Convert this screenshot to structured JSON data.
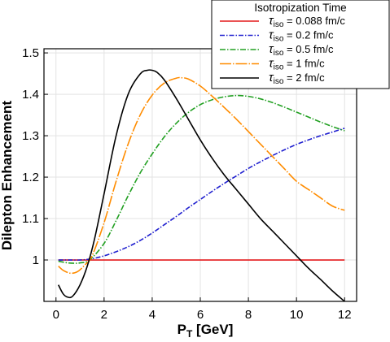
{
  "chart_data": {
    "type": "line",
    "xlabel": {
      "main": "P",
      "sub": "T",
      "unit": " [GeV]"
    },
    "ylabel": "Dilepton Enhancement",
    "xlim": [
      -0.5,
      12.5
    ],
    "ylim": [
      0.9,
      1.51
    ],
    "xticks": [
      0,
      2,
      4,
      6,
      8,
      10,
      12
    ],
    "yticks": [
      1,
      1.1,
      1.2,
      1.3,
      1.4,
      1.5
    ],
    "xtick_labels": [
      "0",
      "2",
      "4",
      "6",
      "8",
      "10",
      "12"
    ],
    "ytick_labels": [
      "1",
      "1.1",
      "1.2",
      "1.3",
      "1.4",
      "1.5"
    ],
    "grid": true,
    "legend": {
      "title": "Isotropization Time",
      "placement": "top-right",
      "entries": [
        {
          "sym": "τ",
          "sub": "iso",
          "text": " = 0.088 fm/c"
        },
        {
          "sym": "τ",
          "sub": "iso",
          "text": " = 0.2 fm/c"
        },
        {
          "sym": "τ",
          "sub": "iso",
          "text": " = 0.5 fm/c"
        },
        {
          "sym": "τ",
          "sub": "iso",
          "text": " = 1 fm/c"
        },
        {
          "sym": "τ",
          "sub": "iso",
          "text": " = 2 fm/c"
        }
      ]
    },
    "series": [
      {
        "color": "#e41a1c",
        "dash": "",
        "x": [
          0.1,
          12
        ],
        "y": [
          1.0,
          1.0
        ]
      },
      {
        "color": "#1f1fcf",
        "dash": "6,2,1.5,2",
        "x": [
          0.1,
          0.5,
          1,
          1.5,
          2,
          2.5,
          3,
          3.5,
          4,
          4.5,
          5,
          5.5,
          6,
          6.5,
          7,
          7.5,
          8,
          8.5,
          9,
          9.5,
          10,
          10.5,
          11,
          11.5,
          12
        ],
        "y": [
          1.0,
          1.0,
          1.0,
          1.003,
          1.01,
          1.02,
          1.032,
          1.047,
          1.065,
          1.085,
          1.105,
          1.126,
          1.146,
          1.166,
          1.185,
          1.203,
          1.221,
          1.237,
          1.252,
          1.266,
          1.279,
          1.29,
          1.3,
          1.309,
          1.318
        ]
      },
      {
        "color": "#22a022",
        "dash": "7,2,1.5,2",
        "x": [
          0.1,
          0.5,
          0.8,
          1,
          1.4,
          2,
          2.5,
          3,
          3.5,
          4,
          4.5,
          5,
          5.5,
          6,
          6.5,
          7,
          7.5,
          8,
          8.5,
          9,
          9.5,
          10,
          10.5,
          11,
          11.5,
          12
        ],
        "y": [
          0.997,
          0.993,
          0.992,
          0.993,
          1.0,
          1.04,
          1.095,
          1.155,
          1.21,
          1.256,
          1.297,
          1.33,
          1.356,
          1.375,
          1.387,
          1.394,
          1.397,
          1.395,
          1.389,
          1.38,
          1.369,
          1.357,
          1.345,
          1.333,
          1.322,
          1.312
        ]
      },
      {
        "color": "#ff8c00",
        "dash": "14,2,1.5,2",
        "x": [
          0.1,
          0.3,
          0.6,
          0.9,
          1.2,
          1.5,
          2,
          2.5,
          3,
          3.5,
          4,
          4.5,
          5,
          5.2,
          5.5,
          6,
          6.5,
          7,
          7.5,
          8,
          8.5,
          9,
          9.5,
          10,
          10.5,
          11,
          11.5,
          12
        ],
        "y": [
          0.985,
          0.975,
          0.968,
          0.972,
          0.988,
          1.01,
          1.09,
          1.19,
          1.28,
          1.35,
          1.398,
          1.427,
          1.439,
          1.44,
          1.437,
          1.42,
          1.395,
          1.368,
          1.34,
          1.31,
          1.28,
          1.25,
          1.22,
          1.19,
          1.17,
          1.15,
          1.13,
          1.12
        ]
      },
      {
        "color": "#000000",
        "dash": "",
        "x": [
          0.1,
          0.3,
          0.5,
          0.7,
          1,
          1.3,
          1.6,
          2,
          2.5,
          3,
          3.5,
          3.8,
          4,
          4.2,
          4.5,
          5,
          5.5,
          6,
          6.5,
          7,
          7.5,
          8,
          8.5,
          9,
          9.5,
          10,
          10.5,
          11,
          11.5,
          12
        ],
        "y": [
          0.94,
          0.918,
          0.91,
          0.913,
          0.94,
          0.985,
          1.05,
          1.16,
          1.3,
          1.4,
          1.449,
          1.458,
          1.458,
          1.453,
          1.435,
          1.39,
          1.34,
          1.29,
          1.245,
          1.205,
          1.17,
          1.135,
          1.1,
          1.07,
          1.04,
          1.01,
          0.98,
          0.953,
          0.925,
          0.9
        ]
      }
    ]
  }
}
